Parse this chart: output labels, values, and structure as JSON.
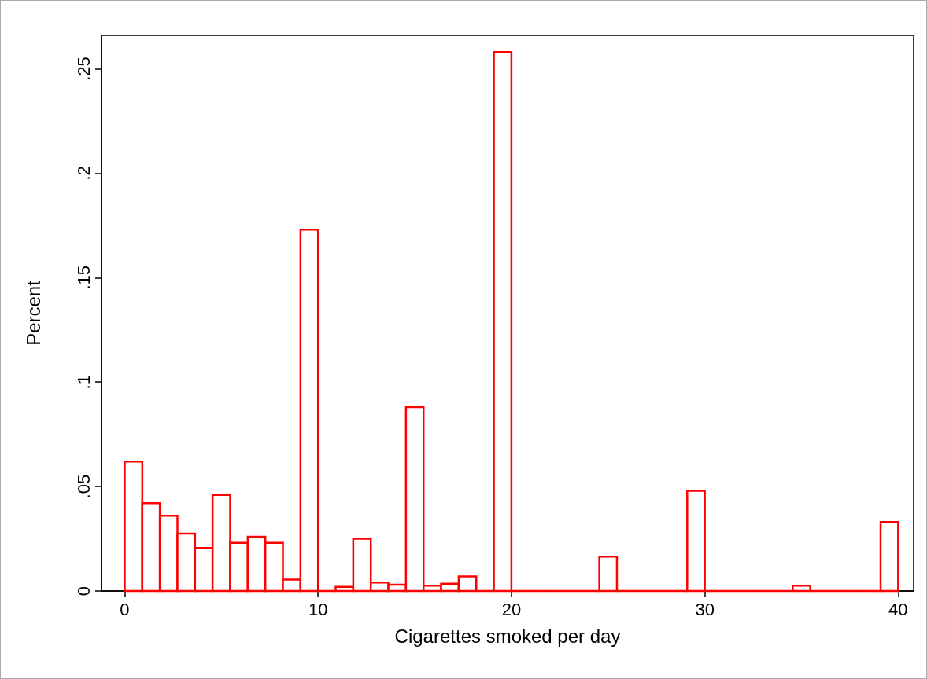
{
  "chart_data": {
    "type": "histogram",
    "xlabel": "Cigarettes smoked per day",
    "ylabel": "Percent",
    "bins": [
      0,
      0.909,
      1.818,
      2.727,
      3.636,
      4.545,
      5.455,
      6.364,
      7.273,
      8.182,
      9.091,
      10,
      10.909,
      11.818,
      12.727,
      13.636,
      14.545,
      15.455,
      16.364,
      17.273,
      18.182,
      19.091,
      20,
      20.909,
      21.818,
      22.727,
      23.636,
      24.545,
      25.455,
      26.364,
      27.273,
      28.182,
      29.091,
      30,
      30.909,
      31.818,
      32.727,
      33.636,
      34.545,
      35.455,
      36.364,
      37.273,
      38.182,
      39.091,
      40
    ],
    "values": [
      0.062,
      0.042,
      0.036,
      0.0275,
      0.0206,
      0.046,
      0.023,
      0.026,
      0.023,
      0.0055,
      0.173,
      0,
      0.002,
      0.025,
      0.004,
      0.003,
      0.088,
      0.0025,
      0.0035,
      0.007,
      0,
      0.258,
      0,
      0,
      0,
      0,
      0,
      0.0165,
      0,
      0,
      0,
      0,
      0.048,
      0,
      0,
      0,
      0,
      0,
      0.0025,
      0,
      0,
      0,
      0,
      0.033
    ],
    "color": "#ff0000",
    "xlim": [
      -1.2,
      40.8
    ],
    "ylim": [
      0,
      0.266
    ],
    "xticks": [
      0,
      10,
      20,
      30,
      40
    ],
    "yticks": [
      {
        "value": 0,
        "label": "0"
      },
      {
        "value": 0.05,
        "label": ".05"
      },
      {
        "value": 0.1,
        "label": ".1"
      },
      {
        "value": 0.15,
        "label": ".15"
      },
      {
        "value": 0.2,
        "label": ".2"
      },
      {
        "value": 0.25,
        "label": ".25"
      }
    ],
    "grid": false
  }
}
